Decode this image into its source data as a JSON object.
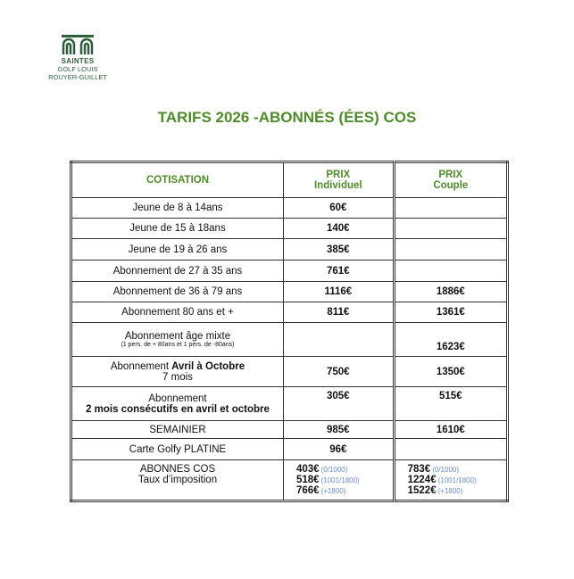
{
  "header": {
    "logo": {
      "line1": "SAINTES",
      "line2": "GOLF LOUIS",
      "line3": "ROUYER-GUILLET"
    },
    "title": "TARIFS 2026 -ABONNÉS (ÉES) COS"
  },
  "table": {
    "columns": [
      {
        "lines": [
          "COTISATION"
        ]
      },
      {
        "lines": [
          "PRIX",
          "Individuel"
        ]
      },
      {
        "lines": [
          "PRIX",
          "Couple"
        ]
      }
    ],
    "rows": [
      {
        "lines": [
          [
            {
              "text": "Jeune de 8 à 14ans"
            }
          ]
        ],
        "individuel": "60€"
      },
      {
        "lines": [
          [
            {
              "text": "Jeune de 15 à 18ans"
            }
          ]
        ],
        "individuel": "140€"
      },
      {
        "lines": [
          [
            {
              "text": "Jeune de 19 à 26 ans"
            }
          ]
        ],
        "individuel": "385€"
      },
      {
        "lines": [
          [
            {
              "text": "Abonnement de 27 à 35 ans"
            }
          ]
        ],
        "individuel": "761€"
      },
      {
        "lines": [
          [
            {
              "text": "Abonnement de 36 à 79 ans"
            }
          ]
        ],
        "individuel": "1116€",
        "couple": "1886€"
      },
      {
        "lines": [
          [
            {
              "text": "Abonnement 80 ans et +"
            }
          ]
        ],
        "individuel": "811€",
        "couple": "1361€"
      },
      {
        "lines": [
          [
            {
              "text": "Abonnement âge mixte"
            }
          ]
        ],
        "note": "(1 pers. de + 80ans et 1 pers. de -80ans)",
        "couple": "1623€"
      },
      {
        "lines": [
          [
            {
              "text": "Abonnement"
            },
            {
              "text": "Avril à Octobre",
              "bold": true
            }
          ],
          [
            {
              "text": "7 mois"
            }
          ]
        ],
        "individuel": "750€",
        "couple": "1350€"
      },
      {
        "lines": [
          [
            {
              "text": "Abonnement"
            }
          ],
          [
            {
              "text": "2 mois consécutifs en avril et octobre",
              "bold": true
            }
          ]
        ],
        "individuel": "305€",
        "couple": "515€"
      },
      {
        "lines": [
          [
            {
              "text": "SEMAINIER"
            }
          ]
        ],
        "individuel": "985€",
        "couple": "1610€"
      },
      {
        "lines": [
          [
            {
              "text": "Carte Golfy PLATINE"
            }
          ]
        ],
        "individuel": "96€"
      },
      {
        "lines": [
          [
            {
              "text": "ABONNES COS"
            }
          ],
          [
            {
              "text": "Taux d’imposition"
            }
          ]
        ],
        "individuel_tiers": [
          {
            "price": "403€",
            "range": "(0/1000)"
          },
          {
            "price": "518€",
            "range": "(1001/1800)"
          },
          {
            "price": "766€",
            "range": "(+1800)"
          }
        ],
        "couple_tiers": [
          {
            "price": "783€",
            "range": "(0/1000)"
          },
          {
            "price": "1224€",
            "range": "(1001/1800)"
          },
          {
            "price": "1522€",
            "range": "(+1800)"
          }
        ]
      }
    ]
  }
}
